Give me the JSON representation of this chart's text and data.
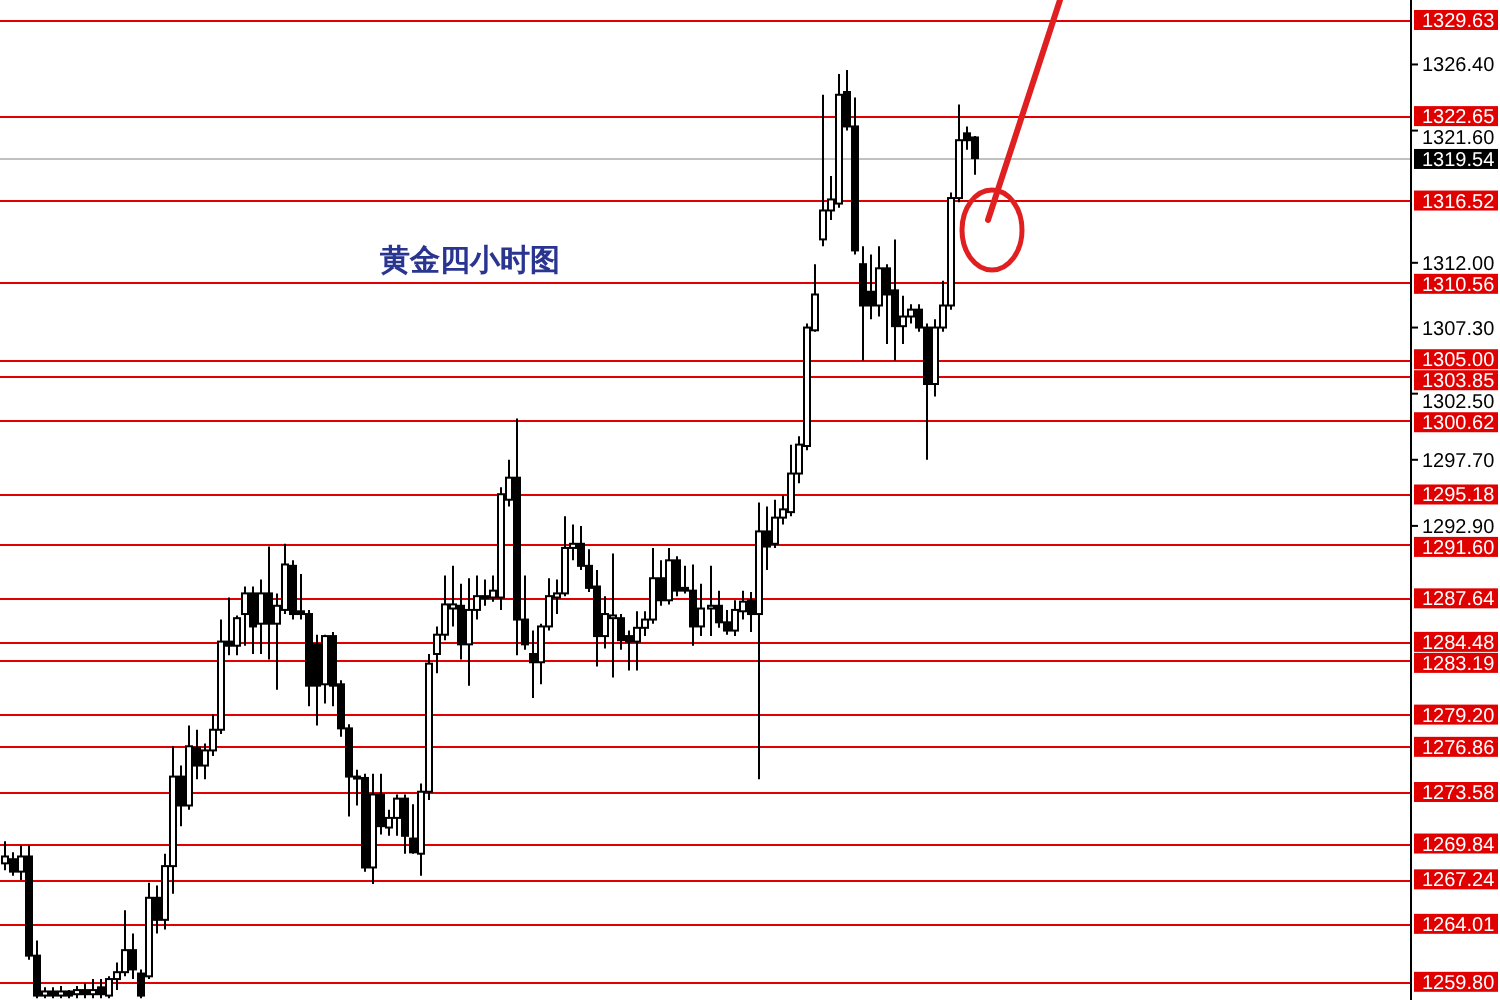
{
  "chart_data": {
    "type": "candlestick",
    "title": "黄金四小时图",
    "color": "#000000",
    "categories": [
      null,
      null,
      null,
      null,
      null,
      null,
      null,
      null,
      null,
      null,
      null,
      null,
      null,
      null,
      null,
      null,
      null,
      null,
      null,
      null,
      null,
      null,
      null,
      null,
      null,
      null,
      null,
      null,
      null,
      null,
      null,
      null,
      null,
      null,
      null,
      null,
      null,
      null,
      null,
      null,
      null,
      null,
      null,
      null,
      null,
      null,
      null,
      null,
      null,
      null,
      null,
      null,
      null,
      null,
      null,
      null,
      null,
      null,
      null,
      null,
      null,
      null,
      null,
      null,
      null,
      null,
      null,
      null,
      null,
      null,
      null,
      null,
      null,
      null,
      null,
      null,
      null,
      null,
      null,
      null,
      null,
      null,
      null,
      null,
      null,
      null,
      null,
      null,
      null,
      null,
      null,
      null,
      null,
      null,
      null,
      null,
      null,
      null,
      null,
      null,
      null,
      null,
      null,
      null,
      null,
      null,
      null,
      null,
      null,
      null,
      null,
      null,
      null,
      null,
      null,
      null,
      null,
      null,
      null,
      null,
      null,
      null,
      null,
      null,
      null,
      null,
      null,
      null,
      null,
      null,
      null,
      null,
      null,
      null,
      null,
      null,
      null,
      null,
      null,
      null,
      null,
      null,
      null,
      null,
      null,
      null,
      null,
      null,
      null,
      null,
      null,
      null,
      null,
      null,
      null,
      null,
      null,
      null,
      null,
      null,
      null,
      null,
      null,
      null,
      null,
      null,
      null,
      null,
      null,
      null,
      null,
      null,
      null,
      null,
      null,
      null
    ],
    "ohlc": [
      [
        1268.4,
        1270.0,
        1267.9,
        1268.9
      ],
      [
        1268.7,
        1269.2,
        1267.5,
        1267.8
      ],
      [
        1267.8,
        1269.7,
        1267.2,
        1268.9
      ],
      [
        1268.9,
        1269.7,
        1261.4,
        1261.7
      ],
      [
        1261.7,
        1262.8,
        1258.6,
        1258.8
      ],
      [
        1258.8,
        1259.4,
        1258.6,
        1259.1
      ],
      [
        1259.1,
        1259.4,
        1258.6,
        1258.8
      ],
      [
        1258.8,
        1259.5,
        1258.6,
        1259.1
      ],
      [
        1259.1,
        1259.2,
        1258.6,
        1258.8
      ],
      [
        1258.9,
        1259.5,
        1258.6,
        1259.2
      ],
      [
        1259.2,
        1259.7,
        1258.6,
        1258.9
      ],
      [
        1258.9,
        1260.0,
        1258.6,
        1259.2
      ],
      [
        1259.4,
        1260.0,
        1258.6,
        1258.9
      ],
      [
        1258.8,
        1260.2,
        1258.6,
        1260.0
      ],
      [
        1260.0,
        1261.2,
        1259.2,
        1260.5
      ],
      [
        1260.5,
        1265.0,
        1260.2,
        1262.1
      ],
      [
        1262.1,
        1263.3,
        1260.0,
        1260.7
      ],
      [
        1260.4,
        1260.7,
        1258.6,
        1258.8
      ],
      [
        1260.2,
        1267.0,
        1260.0,
        1265.9
      ],
      [
        1265.9,
        1266.8,
        1263.3,
        1264.3
      ],
      [
        1264.3,
        1269.1,
        1263.6,
        1268.2
      ],
      [
        1268.2,
        1276.9,
        1266.2,
        1274.7
      ],
      [
        1274.7,
        1275.5,
        1271.1,
        1272.6
      ],
      [
        1272.6,
        1278.4,
        1272.3,
        1276.9
      ],
      [
        1276.8,
        1278.1,
        1274.5,
        1275.5
      ],
      [
        1275.5,
        1277.1,
        1274.5,
        1276.6
      ],
      [
        1276.6,
        1279.2,
        1276.2,
        1278.1
      ],
      [
        1278.1,
        1286.1,
        1277.8,
        1284.5
      ],
      [
        1284.5,
        1287.7,
        1283.5,
        1284.2
      ],
      [
        1284.2,
        1286.4,
        1283.5,
        1286.2
      ],
      [
        1286.5,
        1288.5,
        1284.2,
        1288.0
      ],
      [
        1288.0,
        1288.5,
        1283.6,
        1285.6
      ],
      [
        1285.8,
        1289.0,
        1283.6,
        1288.0
      ],
      [
        1288.0,
        1291.4,
        1283.2,
        1285.8
      ],
      [
        1285.8,
        1288.0,
        1281.0,
        1287.1
      ],
      [
        1286.8,
        1291.6,
        1286.5,
        1290.1
      ],
      [
        1290.0,
        1290.4,
        1286.1,
        1286.5
      ],
      [
        1286.7,
        1289.4,
        1286.1,
        1286.5
      ],
      [
        1286.5,
        1286.8,
        1279.8,
        1281.3
      ],
      [
        1284.3,
        1285.0,
        1278.4,
        1281.3
      ],
      [
        1281.4,
        1285.0,
        1280.0,
        1284.9
      ],
      [
        1284.9,
        1285.2,
        1279.8,
        1281.3
      ],
      [
        1281.4,
        1281.7,
        1277.6,
        1278.2
      ],
      [
        1278.2,
        1278.5,
        1271.8,
        1274.7
      ],
      [
        1274.7,
        1275.2,
        1272.6,
        1274.6
      ],
      [
        1274.6,
        1274.9,
        1267.8,
        1268.1
      ],
      [
        1268.1,
        1274.9,
        1266.9,
        1273.4
      ],
      [
        1273.4,
        1274.9,
        1270.5,
        1271.1
      ],
      [
        1271.0,
        1272.3,
        1270.4,
        1271.7
      ],
      [
        1271.7,
        1273.4,
        1270.4,
        1273.1
      ],
      [
        1273.1,
        1273.4,
        1269.1,
        1270.4
      ],
      [
        1270.2,
        1272.7,
        1269.1,
        1269.2
      ],
      [
        1269.1,
        1274.2,
        1267.5,
        1273.6
      ],
      [
        1273.6,
        1283.6,
        1273.0,
        1282.9
      ],
      [
        1283.6,
        1285.6,
        1282.2,
        1285.0
      ],
      [
        1285.0,
        1289.3,
        1284.6,
        1287.2
      ],
      [
        1286.9,
        1290.0,
        1285.6,
        1287.2
      ],
      [
        1287.1,
        1288.7,
        1283.2,
        1284.3
      ],
      [
        1284.3,
        1289.1,
        1281.3,
        1286.8
      ],
      [
        1286.8,
        1289.3,
        1286.1,
        1287.8
      ],
      [
        1287.8,
        1289.0,
        1287.1,
        1287.7
      ],
      [
        1287.7,
        1289.3,
        1287.4,
        1288.2
      ],
      [
        1287.7,
        1295.7,
        1286.8,
        1295.2
      ],
      [
        1294.8,
        1297.7,
        1294.3,
        1296.4
      ],
      [
        1296.4,
        1300.7,
        1283.5,
        1286.1
      ],
      [
        1286.1,
        1289.3,
        1283.9,
        1284.3
      ],
      [
        1283.6,
        1285.3,
        1280.4,
        1283.0
      ],
      [
        1283.0,
        1285.8,
        1281.4,
        1285.6
      ],
      [
        1285.6,
        1289.1,
        1285.3,
        1287.8
      ],
      [
        1287.7,
        1289.0,
        1286.5,
        1288.0
      ],
      [
        1288.0,
        1293.6,
        1287.8,
        1291.3
      ],
      [
        1291.3,
        1293.0,
        1290.4,
        1291.6
      ],
      [
        1291.6,
        1292.9,
        1289.7,
        1290.0
      ],
      [
        1290.0,
        1291.2,
        1288.1,
        1288.4
      ],
      [
        1288.5,
        1289.7,
        1282.7,
        1284.9
      ],
      [
        1284.9,
        1287.8,
        1284.0,
        1286.5
      ],
      [
        1286.2,
        1290.9,
        1281.9,
        1286.4
      ],
      [
        1286.2,
        1286.5,
        1283.9,
        1284.6
      ],
      [
        1284.9,
        1285.3,
        1282.4,
        1284.5
      ],
      [
        1284.5,
        1286.7,
        1282.4,
        1285.5
      ],
      [
        1285.5,
        1286.7,
        1284.9,
        1286.1
      ],
      [
        1286.1,
        1291.3,
        1285.8,
        1289.1
      ],
      [
        1289.1,
        1290.4,
        1287.1,
        1287.5
      ],
      [
        1287.5,
        1291.3,
        1287.2,
        1290.4
      ],
      [
        1290.4,
        1290.7,
        1287.8,
        1288.2
      ],
      [
        1288.4,
        1290.0,
        1288.0,
        1288.2
      ],
      [
        1288.2,
        1290.1,
        1284.2,
        1285.6
      ],
      [
        1285.6,
        1288.7,
        1284.9,
        1286.9
      ],
      [
        1286.9,
        1290.0,
        1284.9,
        1287.1
      ],
      [
        1287.1,
        1288.2,
        1285.5,
        1285.9
      ],
      [
        1285.9,
        1286.8,
        1285.0,
        1285.3
      ],
      [
        1285.3,
        1287.5,
        1284.9,
        1286.8
      ],
      [
        1286.7,
        1288.2,
        1286.1,
        1287.4
      ],
      [
        1287.5,
        1288.1,
        1285.2,
        1286.5
      ],
      [
        1286.5,
        1294.6,
        1274.5,
        1292.5
      ],
      [
        1292.5,
        1294.3,
        1289.7,
        1291.4
      ],
      [
        1291.6,
        1294.8,
        1291.3,
        1293.5
      ],
      [
        1293.5,
        1295.1,
        1293.0,
        1294.1
      ],
      [
        1293.9,
        1298.8,
        1293.6,
        1296.7
      ],
      [
        1296.7,
        1299.4,
        1296.0,
        1298.8
      ],
      [
        1298.7,
        1307.6,
        1298.4,
        1307.3
      ],
      [
        1307.1,
        1311.9,
        1307.0,
        1309.7
      ],
      [
        1313.7,
        1324.2,
        1313.2,
        1315.8
      ],
      [
        1315.8,
        1318.3,
        1315.1,
        1316.6
      ],
      [
        1316.3,
        1325.7,
        1316.0,
        1324.2
      ],
      [
        1324.4,
        1326.0,
        1321.6,
        1321.9
      ],
      [
        1321.9,
        1324.0,
        1312.6,
        1312.9
      ],
      [
        1311.9,
        1313.2,
        1304.9,
        1308.9
      ],
      [
        1309.9,
        1312.6,
        1307.9,
        1308.9
      ],
      [
        1308.9,
        1313.2,
        1308.1,
        1311.6
      ],
      [
        1311.6,
        1311.9,
        1306.1,
        1309.7
      ],
      [
        1310.0,
        1313.7,
        1304.9,
        1307.4
      ],
      [
        1307.4,
        1309.6,
        1306.1,
        1308.1
      ],
      [
        1308.1,
        1309.0,
        1307.6,
        1308.6
      ],
      [
        1308.6,
        1309.0,
        1307.0,
        1307.3
      ],
      [
        1307.3,
        1307.6,
        1297.7,
        1303.2
      ],
      [
        1303.2,
        1307.9,
        1302.3,
        1307.3
      ],
      [
        1307.3,
        1310.7,
        1307.0,
        1308.9
      ],
      [
        1308.9,
        1317.1,
        1308.6,
        1316.7
      ],
      [
        1316.7,
        1323.5,
        1316.4,
        1320.9
      ],
      [
        1321.4,
        1321.9,
        1320.2,
        1320.9
      ],
      [
        1321.1,
        1321.2,
        1318.4,
        1319.6
      ],
      null,
      null,
      null,
      null,
      null,
      null,
      null,
      null,
      null,
      null,
      null,
      null,
      null,
      null,
      null,
      null,
      null,
      null,
      null,
      null,
      null,
      null,
      null,
      null,
      null,
      null,
      null,
      null,
      null,
      null,
      null,
      null,
      null,
      null,
      null,
      null,
      null,
      null,
      null,
      null,
      null,
      null,
      null,
      null,
      null,
      null,
      null,
      null,
      null,
      null,
      null,
      null,
      null,
      null
    ],
    "ylim": [
      1258.48,
      1331.08
    ],
    "yticks": [
      {
        "value": 1326.4,
        "label": "1326.40"
      },
      {
        "value": 1321.6,
        "label": "1321.60"
      },
      {
        "value": 1312.0,
        "label": "1312.00"
      },
      {
        "value": 1307.3,
        "label": "1307.30"
      },
      {
        "value": 1302.5,
        "label": "1302.50"
      },
      {
        "value": 1297.7,
        "label": "1297.70"
      },
      {
        "value": 1292.9,
        "label": "1292.90"
      }
    ],
    "grid": false,
    "ref_lines": [
      {
        "axis": "y",
        "value": 1329.63,
        "label": "1329.63",
        "color": "#e00000"
      },
      {
        "axis": "y",
        "value": 1322.65,
        "label": "1322.65",
        "color": "#e00000"
      },
      {
        "axis": "y",
        "value": 1319.54,
        "label": "1319.54",
        "color": "#c0c0c0"
      },
      {
        "axis": "y",
        "value": 1316.52,
        "label": "1316.52",
        "color": "#e00000"
      },
      {
        "axis": "y",
        "value": 1310.56,
        "label": "1310.56",
        "color": "#e00000"
      },
      {
        "axis": "y",
        "value": 1305.0,
        "label": "1305.00",
        "color": "#e00000"
      },
      {
        "axis": "y",
        "value": 1303.85,
        "label": "1303.85",
        "color": "#e00000"
      },
      {
        "axis": "y",
        "value": 1300.62,
        "label": "1300.62",
        "color": "#e00000"
      },
      {
        "axis": "y",
        "value": 1295.18,
        "label": "1295.18",
        "color": "#e00000"
      },
      {
        "axis": "y",
        "value": 1291.6,
        "label": "1291.60",
        "color": "#e00000"
      },
      {
        "axis": "y",
        "value": 1287.64,
        "label": "1287.64",
        "color": "#e00000"
      },
      {
        "axis": "y",
        "value": 1284.48,
        "label": "1284.48",
        "color": "#e00000"
      },
      {
        "axis": "y",
        "value": 1283.19,
        "label": "1283.19",
        "color": "#e00000"
      },
      {
        "axis": "y",
        "value": 1279.2,
        "label": "1279.20",
        "color": "#e00000"
      },
      {
        "axis": "y",
        "value": 1276.86,
        "label": "1276.86",
        "color": "#e00000"
      },
      {
        "axis": "y",
        "value": 1273.58,
        "label": "1273.58",
        "color": "#e00000"
      },
      {
        "axis": "y",
        "value": 1269.84,
        "label": "1269.84",
        "color": "#e00000"
      },
      {
        "axis": "y",
        "value": 1267.24,
        "label": "1267.24",
        "color": "#e00000"
      },
      {
        "axis": "y",
        "value": 1264.01,
        "label": "1264.01",
        "color": "#e00000"
      },
      {
        "axis": "y",
        "value": 1259.8,
        "label": "1259.80",
        "color": "#e00000"
      }
    ]
  }
}
